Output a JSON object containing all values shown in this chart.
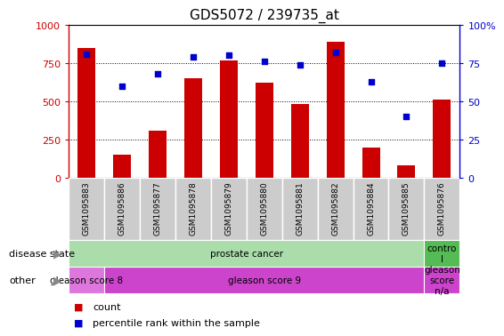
{
  "title": "GDS5072 / 239735_at",
  "samples": [
    "GSM1095883",
    "GSM1095886",
    "GSM1095877",
    "GSM1095878",
    "GSM1095879",
    "GSM1095880",
    "GSM1095881",
    "GSM1095882",
    "GSM1095884",
    "GSM1095885",
    "GSM1095876"
  ],
  "counts": [
    850,
    150,
    310,
    650,
    770,
    620,
    480,
    890,
    195,
    80,
    510
  ],
  "percentiles": [
    81,
    60,
    68,
    79,
    80,
    76,
    74,
    82,
    63,
    40,
    75
  ],
  "ylim_left": [
    0,
    1000
  ],
  "ylim_right": [
    0,
    100
  ],
  "yticks_left": [
    0,
    250,
    500,
    750,
    1000
  ],
  "ytick_labels_left": [
    "0",
    "250",
    "500",
    "750",
    "1000"
  ],
  "yticks_right": [
    0,
    25,
    50,
    75,
    100
  ],
  "ytick_labels_right": [
    "0",
    "25",
    "50",
    "75",
    "100%"
  ],
  "bar_color": "#cc0000",
  "dot_color": "#0000cc",
  "disease_groups": [
    {
      "label": "prostate cancer",
      "start": 0,
      "end": 10,
      "color": "#aaddaa"
    },
    {
      "label": "contro\nl",
      "start": 10,
      "end": 11,
      "color": "#55bb55"
    }
  ],
  "other_groups": [
    {
      "label": "gleason score 8",
      "start": 0,
      "end": 1,
      "color": "#dd77dd"
    },
    {
      "label": "gleason score 9",
      "start": 1,
      "end": 10,
      "color": "#cc44cc"
    },
    {
      "label": "gleason\nscore\nn/a",
      "start": 10,
      "end": 11,
      "color": "#cc44cc"
    }
  ],
  "legend_items": [
    {
      "label": "count",
      "color": "#cc0000"
    },
    {
      "label": "percentile rank within the sample",
      "color": "#0000cc"
    }
  ],
  "disease_state_label": "disease state",
  "other_label": "other",
  "xtick_bg_color": "#cccccc",
  "xtick_border_color": "#ffffff"
}
